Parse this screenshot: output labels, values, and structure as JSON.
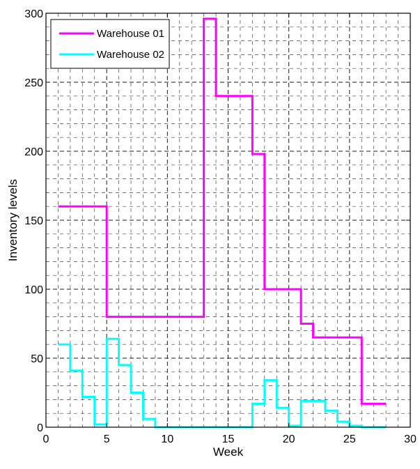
{
  "chart_data": {
    "type": "line",
    "step": true,
    "xlabel": "Week",
    "ylabel": "Inventory levels",
    "xlim": [
      0,
      30
    ],
    "ylim": [
      0,
      300
    ],
    "xticks": [
      0,
      5,
      10,
      15,
      20,
      25,
      30
    ],
    "yticks": [
      0,
      50,
      100,
      150,
      200,
      250,
      300
    ],
    "grid": true,
    "grid_style": "dashed",
    "legend_position": "top-left",
    "series": [
      {
        "name": "Warehouse 01",
        "color": "#ff00ff",
        "x": [
          1,
          2,
          3,
          4,
          5,
          6,
          7,
          8,
          9,
          10,
          11,
          12,
          13,
          14,
          15,
          16,
          17,
          18,
          19,
          20,
          21,
          22,
          23,
          24,
          25,
          26,
          27,
          28
        ],
        "y": [
          160,
          160,
          160,
          160,
          80,
          80,
          80,
          80,
          80,
          80,
          80,
          80,
          296,
          240,
          240,
          240,
          198,
          100,
          100,
          100,
          75,
          65,
          65,
          65,
          65,
          17,
          17,
          17
        ]
      },
      {
        "name": "Warehouse 02",
        "color": "#00ffff",
        "x": [
          1,
          2,
          3,
          4,
          5,
          6,
          7,
          8,
          9,
          10,
          11,
          12,
          13,
          14,
          15,
          16,
          17,
          18,
          19,
          20,
          21,
          22,
          23,
          24,
          25,
          26,
          27,
          28
        ],
        "y": [
          60,
          41,
          22,
          2,
          64,
          45,
          25,
          6,
          0,
          0,
          0,
          0,
          0,
          0,
          0,
          0,
          17,
          34,
          14,
          1,
          19,
          19,
          12,
          4,
          1,
          0,
          0,
          0
        ]
      }
    ]
  }
}
